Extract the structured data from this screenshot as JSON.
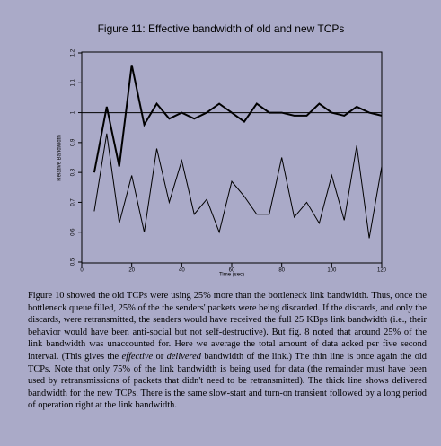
{
  "chart_data": {
    "type": "line",
    "title": "Figure 11: Effective bandwidth of old and new TCPs",
    "x_label": "Time (sec)",
    "y_label": "Relative Bandwidth",
    "x": [
      5,
      10,
      15,
      20,
      25,
      30,
      35,
      40,
      45,
      50,
      55,
      60,
      65,
      70,
      75,
      80,
      85,
      90,
      95,
      100,
      105,
      110,
      115,
      120
    ],
    "series": [
      {
        "color": "#000000",
        "width": 2,
        "values": [
          0.8,
          1.02,
          0.82,
          1.16,
          0.96,
          1.03,
          0.98,
          1.0,
          0.98,
          1.0,
          1.03,
          1.0,
          0.97,
          1.03,
          1.0,
          1.0,
          0.99,
          0.99,
          1.03,
          1.0,
          0.99,
          1.02,
          1.0,
          0.99
        ]
      },
      {
        "color": "#000000",
        "width": 1,
        "values": [
          0.67,
          0.93,
          0.63,
          0.79,
          0.6,
          0.88,
          0.7,
          0.84,
          0.66,
          0.71,
          0.6,
          0.77,
          0.72,
          0.66,
          0.66,
          0.85,
          0.65,
          0.7,
          0.63,
          0.79,
          0.64,
          0.89,
          0.58,
          0.82
        ]
      }
    ],
    "reference_line": 1.0,
    "xlim": [
      0,
      120
    ],
    "xticks": [
      0,
      20,
      40,
      60,
      80,
      100,
      120
    ],
    "ylim": [
      0.5,
      1.2
    ],
    "yticks": [
      0.5,
      0.6,
      0.7,
      0.8,
      0.9,
      1.0,
      1.1,
      1.2
    ]
  },
  "body": {
    "paragraph": [
      {
        "text": "Figure 10 showed the old TCPs were using 25% more than the bottleneck link bandwidth. Thus, once the bottleneck queue filled, 25% of the the senders' packets were being discarded. If the discards, and only the discards, were retransmitted, the senders would have received the full 25 KBps link bandwidth (i.e., their behavior would have been anti-social but not self-destructive). But fig. 8 noted that around 25% of the link bandwidth was unaccounted for. Here we average the total amount of data acked per five second interval. (This gives the ",
        "italic": false
      },
      {
        "text": "effective",
        "italic": true
      },
      {
        "text": " or ",
        "italic": false
      },
      {
        "text": "delivered",
        "italic": true
      },
      {
        "text": " bandwidth of the link.) The thin line is once again the old TCPs. Note that only 75% of the link bandwidth is being used for data (the remainder must have been used by retransmissions of packets that didn't need to be retransmitted). The thick line shows delivered bandwidth for the new TCPs. There is the same slow-start and turn-on transient followed by a long period of operation right at the link bandwidth.",
        "italic": false
      }
    ]
  }
}
